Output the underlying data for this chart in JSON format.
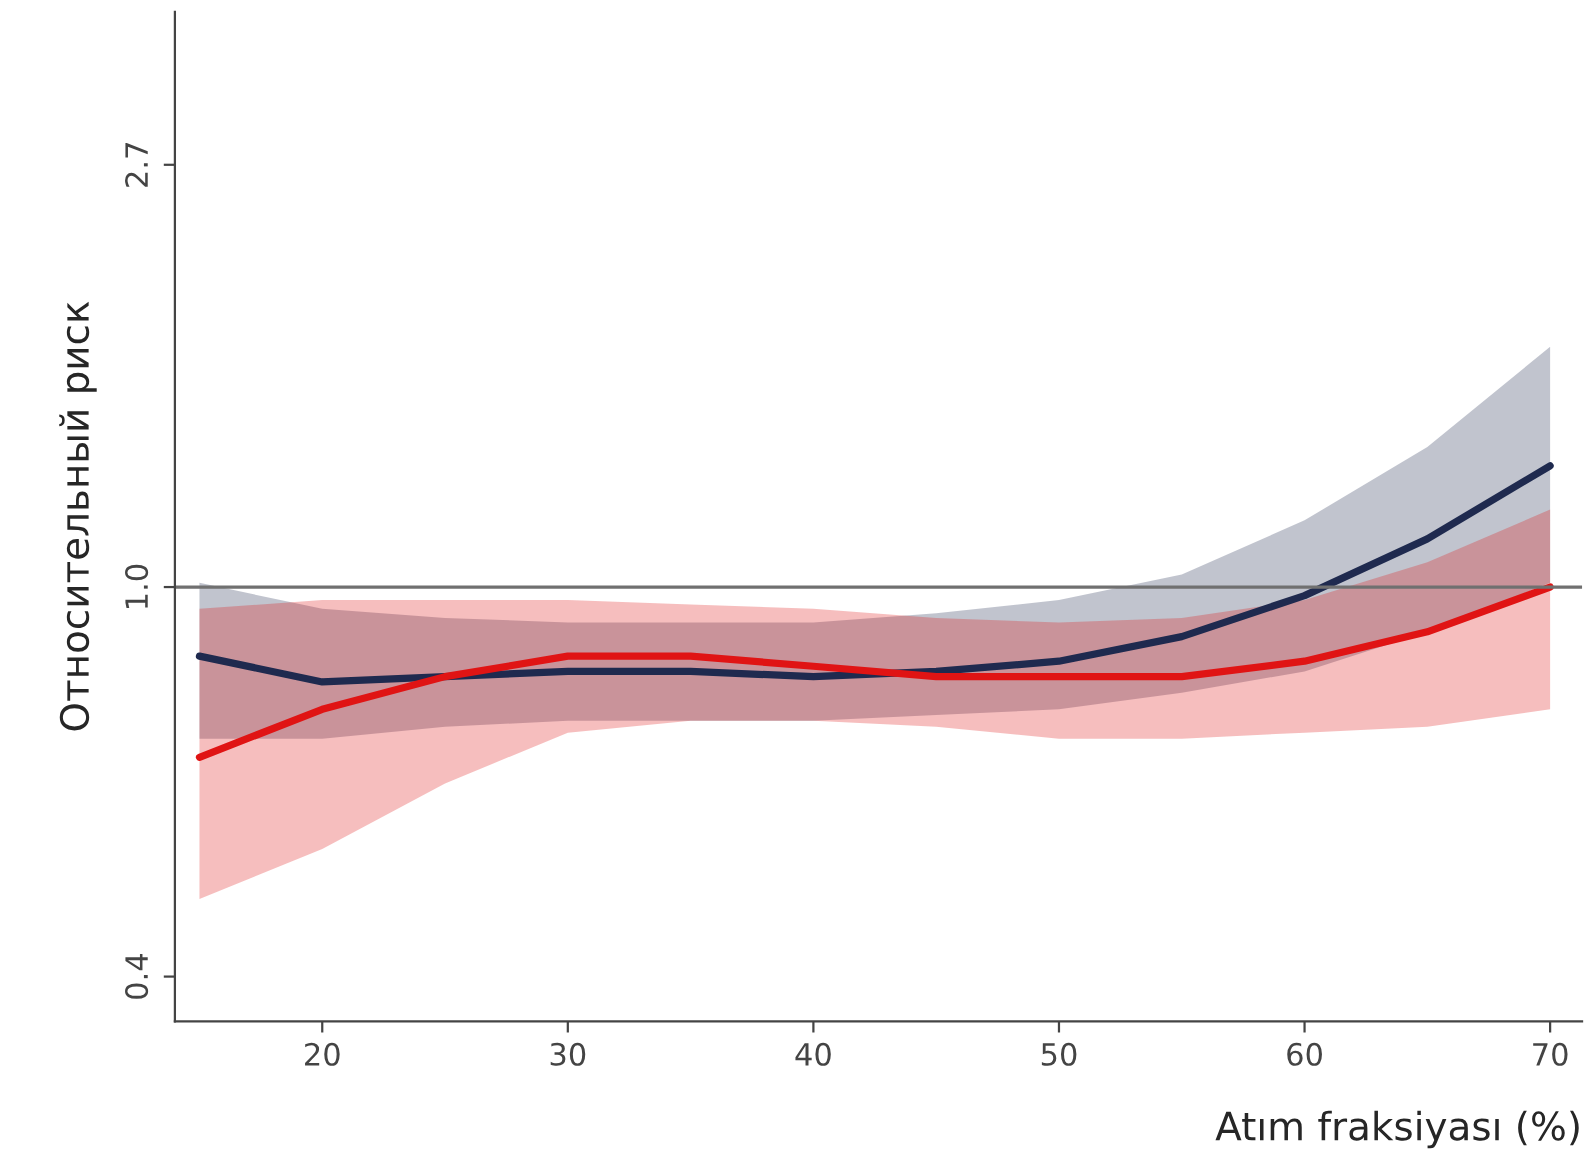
{
  "chart_data": {
    "type": "line",
    "xlabel": "Atım fraksiyası (%)",
    "ylabel": "Относительный риск",
    "x": [
      15,
      20,
      25,
      30,
      35,
      40,
      45,
      50,
      55,
      60,
      65,
      70
    ],
    "series": [
      {
        "color": "#1f2a4f",
        "values": [
          0.85,
          0.8,
          0.81,
          0.82,
          0.82,
          0.81,
          0.82,
          0.84,
          0.89,
          0.98,
          1.12,
          1.33
        ],
        "lower": [
          0.7,
          0.7,
          0.72,
          0.73,
          0.73,
          0.73,
          0.74,
          0.75,
          0.78,
          0.82,
          0.9,
          1.01
        ],
        "upper": [
          1.01,
          0.95,
          0.93,
          0.92,
          0.92,
          0.92,
          0.94,
          0.97,
          1.03,
          1.17,
          1.39,
          1.76
        ]
      },
      {
        "color": "#e01414",
        "values": [
          0.67,
          0.75,
          0.81,
          0.85,
          0.85,
          0.83,
          0.81,
          0.81,
          0.81,
          0.84,
          0.9,
          1.0
        ],
        "lower": [
          0.48,
          0.54,
          0.63,
          0.71,
          0.73,
          0.73,
          0.72,
          0.7,
          0.7,
          0.71,
          0.72,
          0.75
        ],
        "upper": [
          0.95,
          0.97,
          0.97,
          0.97,
          0.96,
          0.95,
          0.93,
          0.92,
          0.93,
          0.97,
          1.06,
          1.2
        ]
      }
    ],
    "log": "y",
    "xlim": [
      14,
      71.3
    ],
    "ylim": [
      0.36,
      3.87
    ],
    "xticks": [
      20,
      30,
      40,
      50,
      60,
      70
    ],
    "yticks": [
      0.4,
      {
        "value": 1.0,
        "label": "1.0"
      },
      2.7
    ],
    "ref_lines": [
      {
        "axis": "y",
        "value": 1.0,
        "color": "#707070"
      }
    ],
    "grid": false
  }
}
